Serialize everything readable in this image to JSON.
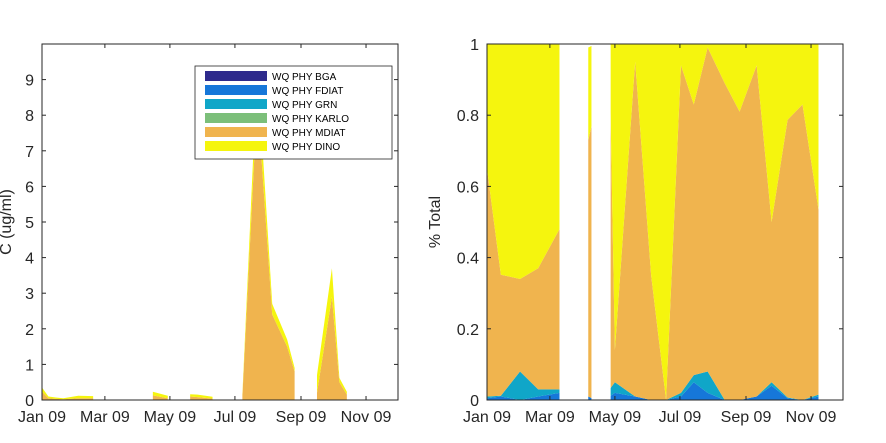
{
  "colors": {
    "WQ PHY BGA": "#2e2a8c",
    "WQ PHY FDIAT": "#1677d9",
    "WQ PHY GRN": "#10a6c8",
    "WQ PHY KARLO": "#7cbf7a",
    "WQ PHY MDIAT": "#f0b44e",
    "WQ PHY DINO": "#f5f50e"
  },
  "chart_data": [
    {
      "type": "area",
      "stacked": true,
      "title": "",
      "xlabel": "",
      "ylabel": "C (ug/ml)",
      "xlim": [
        "2009-01-01",
        "2009-12-01"
      ],
      "ylim": [
        0,
        10
      ],
      "yticks": [
        0,
        1,
        2,
        3,
        4,
        5,
        6,
        7,
        8,
        9
      ],
      "xtick_labels": [
        "Jan 09",
        "Mar 09",
        "May 09",
        "Jul 09",
        "Sep 09",
        "Nov 09"
      ],
      "xtick_dates": [
        "2009-01-01",
        "2009-03-01",
        "2009-05-01",
        "2009-07-01",
        "2009-09-01",
        "2009-11-01"
      ],
      "legend_position": "top-right",
      "grid": false,
      "x": [
        "2009-01-01",
        "2009-01-07",
        "2009-01-14",
        "2009-01-21",
        "2009-02-04",
        "2009-02-18",
        "2009-03-04",
        "2009-03-18",
        "2009-04-01",
        "2009-04-15",
        "2009-04-29",
        "2009-05-06",
        "2009-05-13",
        "2009-05-20",
        "2009-05-27",
        "2009-06-10",
        "2009-06-24",
        "2009-07-01",
        "2009-07-08",
        "2009-07-22",
        "2009-08-05",
        "2009-08-19",
        "2009-08-26",
        "2009-09-02",
        "2009-09-16",
        "2009-09-30",
        "2009-10-07",
        "2009-10-14",
        "2009-10-28",
        "2009-11-11",
        "2009-11-25",
        "2009-12-01"
      ],
      "series": [
        {
          "name": "WQ PHY BGA",
          "values": [
            0,
            0,
            0,
            0,
            0,
            0,
            0,
            0,
            0,
            0,
            0,
            0,
            0,
            0,
            0,
            0,
            0,
            0,
            0,
            0,
            0,
            0,
            0,
            0,
            0,
            0,
            0,
            0,
            0,
            0,
            0,
            0
          ]
        },
        {
          "name": "WQ PHY FDIAT",
          "values": [
            0,
            0,
            0,
            0,
            0,
            0,
            0,
            0,
            0,
            0,
            0,
            0,
            0,
            0,
            0,
            0,
            0,
            0,
            0,
            0,
            0,
            0,
            0,
            0,
            0,
            0,
            0,
            0,
            0,
            0,
            0,
            0
          ]
        },
        {
          "name": "WQ PHY GRN",
          "values": [
            0.01,
            0,
            0,
            0,
            0,
            0,
            0,
            0,
            0,
            0.01,
            0,
            0,
            0,
            0,
            0,
            0,
            0,
            0,
            0,
            0,
            0,
            0,
            0,
            0,
            0,
            0,
            0,
            0,
            0,
            0,
            0,
            0
          ]
        },
        {
          "name": "WQ PHY KARLO",
          "values": [
            0,
            0,
            0,
            0,
            0,
            0,
            0,
            0,
            0,
            0,
            0,
            0,
            0,
            0,
            0,
            0,
            0,
            0,
            0,
            0,
            0,
            0,
            0,
            0,
            0,
            0,
            0,
            0,
            0,
            0,
            0,
            0
          ]
        },
        {
          "name": "WQ PHY MDIAT",
          "values": [
            0.22,
            0.05,
            0.03,
            0.02,
            0.05,
            0.05,
            0,
            0,
            0,
            0.12,
            0.05,
            0,
            0,
            0.1,
            0.08,
            0.04,
            0,
            0,
            0.1,
            8.5,
            2.4,
            1.5,
            0.8,
            0,
            0.2,
            2.9,
            0.5,
            0.15,
            0,
            0,
            0,
            0
          ]
        },
        {
          "name": "WQ PHY DINO",
          "values": [
            0.12,
            0.05,
            0.04,
            0.03,
            0.07,
            0.06,
            0,
            0,
            0,
            0.1,
            0.07,
            0,
            0,
            0.06,
            0.07,
            0.05,
            0,
            0,
            0.05,
            0.9,
            0.3,
            0.2,
            0.1,
            0,
            0.5,
            0.8,
            0.12,
            0.08,
            0,
            0,
            0,
            0
          ]
        }
      ],
      "valid": [
        true,
        true,
        true,
        true,
        true,
        true,
        false,
        false,
        false,
        true,
        true,
        false,
        false,
        true,
        true,
        true,
        false,
        false,
        true,
        true,
        true,
        true,
        true,
        false,
        true,
        true,
        true,
        true,
        false,
        false,
        false,
        false
      ]
    },
    {
      "type": "area",
      "stacked": true,
      "title": "",
      "xlabel": "",
      "ylabel": "% Total",
      "xlim": [
        "2009-01-01",
        "2009-12-01"
      ],
      "ylim": [
        0,
        1
      ],
      "yticks": [
        0,
        0.2,
        0.4,
        0.6,
        0.8,
        1
      ],
      "ytick_labels": [
        "0",
        "0.2",
        "0.4",
        "0.6",
        "0.8",
        "1"
      ],
      "xtick_labels": [
        "Jan 09",
        "Mar 09",
        "May 09",
        "Jul 09",
        "Sep 09",
        "Nov 09"
      ],
      "xtick_dates": [
        "2009-01-01",
        "2009-03-01",
        "2009-05-01",
        "2009-07-01",
        "2009-09-01",
        "2009-11-01"
      ],
      "grid": false,
      "x": [
        "2009-01-01",
        "2009-01-14",
        "2009-02-01",
        "2009-02-18",
        "2009-03-10",
        "2009-03-11",
        "2009-04-01",
        "2009-04-06",
        "2009-04-13",
        "2009-04-26",
        "2009-05-01",
        "2009-05-20",
        "2009-06-04",
        "2009-06-18",
        "2009-07-02",
        "2009-07-14",
        "2009-07-27",
        "2009-08-12",
        "2009-08-26",
        "2009-09-11",
        "2009-09-25",
        "2009-10-10",
        "2009-10-24",
        "2009-11-08",
        "2009-11-25",
        "2009-12-01"
      ],
      "series": [
        {
          "name": "WQ PHY BGA",
          "values": [
            0,
            0,
            0,
            0,
            0,
            0,
            0,
            0,
            0,
            0,
            0,
            0,
            0,
            0,
            0,
            0,
            0,
            0,
            0,
            0,
            0,
            0,
            0,
            0,
            0,
            0
          ]
        },
        {
          "name": "WQ PHY FDIAT",
          "values": [
            0.005,
            0.01,
            0,
            0.01,
            0.02,
            0,
            0,
            0.01,
            0,
            0.01,
            0.02,
            0.01,
            0,
            0,
            0.01,
            0.05,
            0.02,
            0,
            0,
            0.01,
            0.04,
            0.005,
            0,
            0.01,
            0,
            0
          ]
        },
        {
          "name": "WQ PHY GRN",
          "values": [
            0.005,
            0.002,
            0.08,
            0.02,
            0.01,
            0,
            0,
            0,
            0,
            0.02,
            0.03,
            0,
            0,
            0,
            0.01,
            0.02,
            0.06,
            0,
            0,
            0,
            0.01,
            0.002,
            0,
            0.005,
            0,
            0
          ]
        },
        {
          "name": "WQ PHY KARLO",
          "values": [
            0,
            0,
            0,
            0,
            0,
            0,
            0,
            0,
            0,
            0,
            0,
            0,
            0,
            0,
            0,
            0,
            0,
            0,
            0,
            0,
            0,
            0,
            0,
            0,
            0,
            0
          ]
        },
        {
          "name": "WQ PHY MDIAT",
          "values": [
            0.64,
            0.34,
            0.26,
            0.34,
            0.45,
            0,
            0,
            0.72,
            0.82,
            0.92,
            0.09,
            0.94,
            0.35,
            0,
            0.92,
            0.76,
            0.91,
            0.89,
            0.81,
            0.93,
            0.45,
            0.78,
            0.83,
            0.52,
            0,
            0
          ]
        },
        {
          "name": "WQ PHY DINO",
          "values": [
            0.35,
            0.648,
            0.66,
            0.63,
            0.52,
            0,
            0,
            0.26,
            0.18,
            0.05,
            0.86,
            0.05,
            0.65,
            1,
            0.06,
            0.17,
            0.01,
            0.11,
            0.19,
            0.06,
            0.5,
            0.213,
            0.17,
            0.465,
            0,
            0
          ]
        }
      ],
      "valid": [
        true,
        true,
        true,
        true,
        true,
        false,
        false,
        true,
        true,
        true,
        true,
        true,
        true,
        true,
        true,
        true,
        true,
        true,
        true,
        true,
        true,
        true,
        true,
        true,
        false,
        false
      ],
      "gaps": [
        [
          "2009-03-12",
          "2009-03-31"
        ],
        [
          "2009-04-09",
          "2009-04-27"
        ]
      ]
    }
  ]
}
